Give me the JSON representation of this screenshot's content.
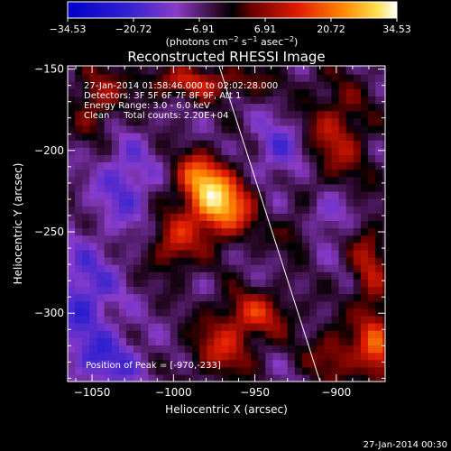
{
  "chart_data": {
    "type": "heatmap",
    "title": "Reconstructed RHESSI Image",
    "xlabel": "Heliocentric X (arcsec)",
    "ylabel": "Heliocentric Y (arcsec)",
    "xlim": [
      -1065,
      -870
    ],
    "ylim": [
      -342,
      -148
    ],
    "xticks": [
      -1050,
      -1000,
      -950,
      -900
    ],
    "xtick_labels": [
      "−1050",
      "−1000",
      "−950",
      "−900"
    ],
    "yticks": [
      -150,
      -200,
      -250,
      -300
    ],
    "ytick_labels": [
      "−150",
      "−200",
      "−250",
      "−300"
    ],
    "colorbar": {
      "range": [
        -34.53,
        34.53
      ],
      "ticks": [
        -34.53,
        -20.72,
        -6.91,
        6.91,
        20.72,
        34.53
      ],
      "tick_labels": [
        "−34.53",
        "−20.72",
        "−6.91",
        "6.91",
        "20.72",
        "34.53"
      ],
      "unit_label": "(photons cm",
      "unit_parts": [
        "(photons cm",
        "−2",
        " s",
        "−1",
        " asec",
        "−2",
        ")"
      ],
      "colors": [
        "#0000c8",
        "#5a2bd0",
        "#9a3fc0",
        "#2a0a20",
        "#8a0000",
        "#e02000",
        "#ff8a00",
        "#ffe040",
        "#ffffff"
      ]
    },
    "annotations": [
      "27-Jan-2014 01:58:46.000 to 02:02:28.000",
      "Detectors: 3F 5F 6F 7F 8F 9F, Att 1",
      "Energy Range: 3.0 - 6.0 keV",
      "Clean     Total counts: 2.20E+04"
    ],
    "peak_label": "Position of Peak = [-970,-233]",
    "peak": [
      -970,
      -233
    ],
    "limb_line": [
      [
        -972,
        -148
      ],
      [
        -910,
        -342
      ]
    ],
    "sources": [
      {
        "x": -972,
        "y": -233,
        "amp": 34,
        "sx": 14,
        "sy": 14
      },
      {
        "x": -985,
        "y": -215,
        "amp": 20,
        "sx": 10,
        "sy": 10
      },
      {
        "x": -1000,
        "y": -258,
        "amp": 16,
        "sx": 10,
        "sy": 12
      },
      {
        "x": -1048,
        "y": -170,
        "amp": 13,
        "sx": 10,
        "sy": 14
      },
      {
        "x": -985,
        "y": -158,
        "amp": 16,
        "sx": 30,
        "sy": 7
      },
      {
        "x": -900,
        "y": -190,
        "amp": 15,
        "sx": 14,
        "sy": 22
      },
      {
        "x": -880,
        "y": -270,
        "amp": 14,
        "sx": 8,
        "sy": 20
      },
      {
        "x": -950,
        "y": -300,
        "amp": 17,
        "sx": 16,
        "sy": 10
      },
      {
        "x": -970,
        "y": -322,
        "amp": 16,
        "sx": 14,
        "sy": 12
      },
      {
        "x": -900,
        "y": -325,
        "amp": 14,
        "sx": 12,
        "sy": 12
      },
      {
        "x": -875,
        "y": -320,
        "amp": 20,
        "sx": 8,
        "sy": 18
      },
      {
        "x": -925,
        "y": -250,
        "amp": 10,
        "sx": 8,
        "sy": 8
      },
      {
        "x": -1055,
        "y": -290,
        "amp": -14,
        "sx": 14,
        "sy": 22
      },
      {
        "x": -1030,
        "y": -220,
        "amp": -12,
        "sx": 12,
        "sy": 18
      },
      {
        "x": -1040,
        "y": -330,
        "amp": -12,
        "sx": 16,
        "sy": 12
      },
      {
        "x": -935,
        "y": -200,
        "amp": -11,
        "sx": 12,
        "sy": 14
      },
      {
        "x": -905,
        "y": -240,
        "amp": -10,
        "sx": 10,
        "sy": 10
      }
    ]
  },
  "footer": {
    "timestamp": "27-Jan-2014 00:30"
  }
}
